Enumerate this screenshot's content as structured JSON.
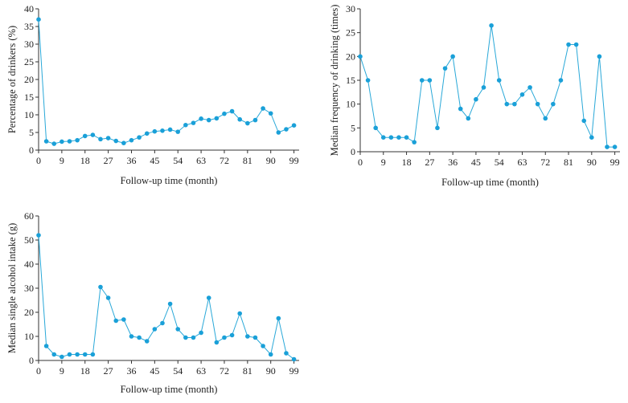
{
  "chart_data": [
    {
      "type": "line",
      "xlabel": "Follow-up time (month)",
      "ylabel": "Percentage of drinkers (%)",
      "ylim": [
        0,
        40
      ],
      "yticks": [
        0,
        5,
        10,
        15,
        20,
        25,
        30,
        35,
        40
      ],
      "xlim": [
        0,
        101
      ],
      "xticks": [
        0,
        9,
        18,
        27,
        36,
        45,
        54,
        63,
        72,
        81,
        90,
        99
      ],
      "x": [
        0,
        3,
        6,
        9,
        12,
        15,
        18,
        21,
        24,
        27,
        30,
        33,
        36,
        39,
        42,
        45,
        48,
        51,
        54,
        57,
        60,
        63,
        66,
        69,
        72,
        75,
        78,
        81,
        84,
        87,
        90,
        93,
        96,
        99
      ],
      "series": [
        {
          "values": [
            37,
            2.5,
            1.8,
            2.4,
            2.5,
            2.8,
            4,
            4.3,
            3.1,
            3.4,
            2.6,
            2,
            2.8,
            3.6,
            4.7,
            5.3,
            5.5,
            5.8,
            5.2,
            7.1,
            7.7,
            8.9,
            8.5,
            9,
            10.3,
            11,
            8.7,
            7.6,
            8.5,
            11.8,
            10.4,
            5,
            5.9,
            7
          ]
        }
      ]
    },
    {
      "type": "line",
      "xlabel": "Follow-up time (month)",
      "ylabel": "Median frequency of drinking (times)",
      "ylim": [
        0,
        30
      ],
      "yticks": [
        0,
        5,
        10,
        15,
        20,
        25,
        30
      ],
      "xlim": [
        0,
        101
      ],
      "xticks": [
        0,
        9,
        18,
        27,
        36,
        45,
        54,
        63,
        72,
        81,
        90,
        99
      ],
      "x": [
        0,
        3,
        6,
        9,
        12,
        15,
        18,
        21,
        24,
        27,
        30,
        33,
        36,
        39,
        42,
        45,
        48,
        51,
        54,
        57,
        60,
        63,
        66,
        69,
        72,
        75,
        78,
        81,
        84,
        87,
        90,
        93,
        96,
        99
      ],
      "series": [
        {
          "values": [
            20,
            15,
            5,
            3,
            3,
            3,
            3,
            2,
            15,
            15,
            5,
            17.5,
            20,
            9,
            7,
            11,
            13.5,
            26.5,
            15,
            10,
            10,
            12,
            13.5,
            10,
            7,
            10,
            15,
            22.5,
            22.5,
            6.5,
            3,
            20,
            1,
            1
          ]
        }
      ]
    },
    {
      "type": "line",
      "xlabel": "Follow-up time (month)",
      "ylabel": "Median single alcohol intake (g)",
      "ylim": [
        0,
        60
      ],
      "yticks": [
        0,
        10,
        20,
        30,
        40,
        50,
        60
      ],
      "xlim": [
        0,
        101
      ],
      "xticks": [
        0,
        9,
        18,
        27,
        36,
        45,
        54,
        63,
        72,
        81,
        90,
        99
      ],
      "x": [
        0,
        3,
        6,
        9,
        12,
        15,
        18,
        21,
        24,
        27,
        30,
        33,
        36,
        39,
        42,
        45,
        48,
        51,
        54,
        57,
        60,
        63,
        66,
        69,
        72,
        75,
        78,
        81,
        84,
        87,
        90,
        93,
        96,
        99
      ],
      "series": [
        {
          "values": [
            52,
            6,
            2.5,
            1.5,
            2.5,
            2.5,
            2.5,
            2.5,
            30.5,
            26,
            16.5,
            17,
            10,
            9.5,
            8,
            13,
            15.5,
            23.5,
            13,
            9.5,
            9.5,
            11.5,
            26,
            7.5,
            9.5,
            10.5,
            19.5,
            10,
            9.5,
            6,
            2.5,
            17.5,
            3,
            0.5
          ]
        }
      ]
    }
  ]
}
